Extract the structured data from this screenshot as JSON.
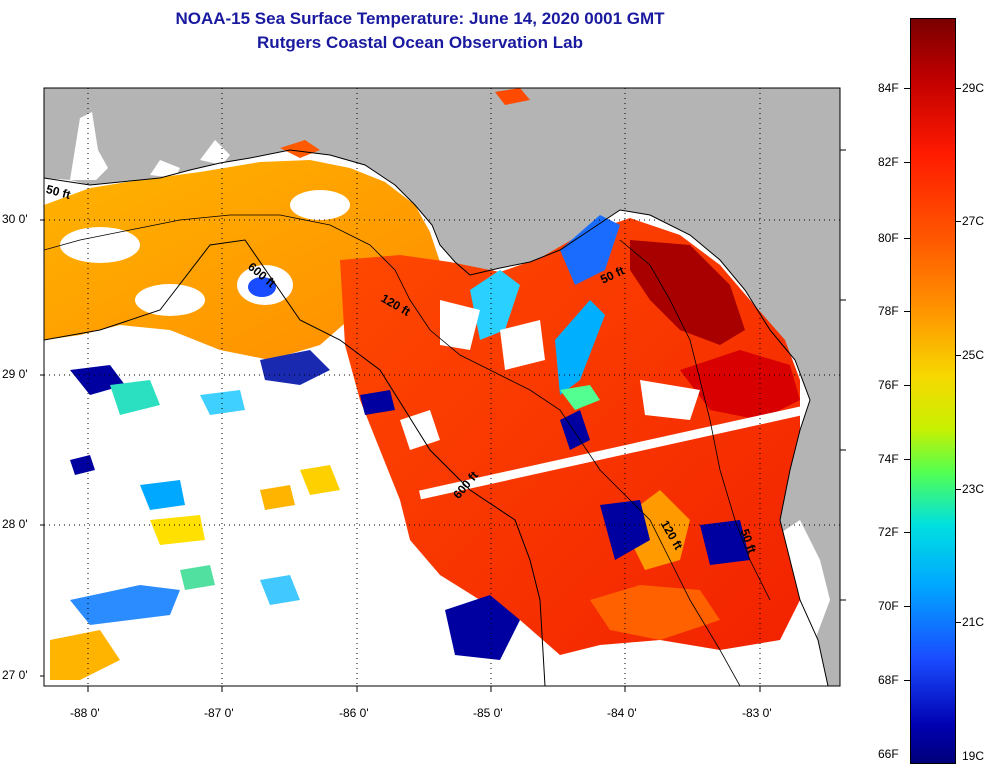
{
  "title_line1": "NOAA-15 Sea Surface Temperature:  June 14, 2020 0001 GMT",
  "title_line2": "Rutgers Coastal Ocean Observation Lab",
  "lat_labels": [
    "30 0'",
    "29 0'",
    "28 0'",
    "27 0'"
  ],
  "lon_labels": [
    "-88 0'",
    "-87 0'",
    "-86 0'",
    "-85 0'",
    "-84 0'",
    "-83 0'"
  ],
  "contour_labels": [
    "50 ft",
    "600 ft",
    "120 ft",
    "50 ft",
    "600 ft",
    "120 ft",
    "50 ft"
  ],
  "colorbar": {
    "fahrenheit": [
      "84F",
      "82F",
      "80F",
      "78F",
      "76F",
      "74F",
      "72F",
      "70F",
      "68F",
      "66F"
    ],
    "celsius": [
      "29C",
      "27C",
      "25C",
      "23C",
      "21C",
      "19C"
    ]
  },
  "colors": {
    "land": "#b4b4b4",
    "cloud": "#ffffff",
    "title": "#1a1aa0"
  }
}
